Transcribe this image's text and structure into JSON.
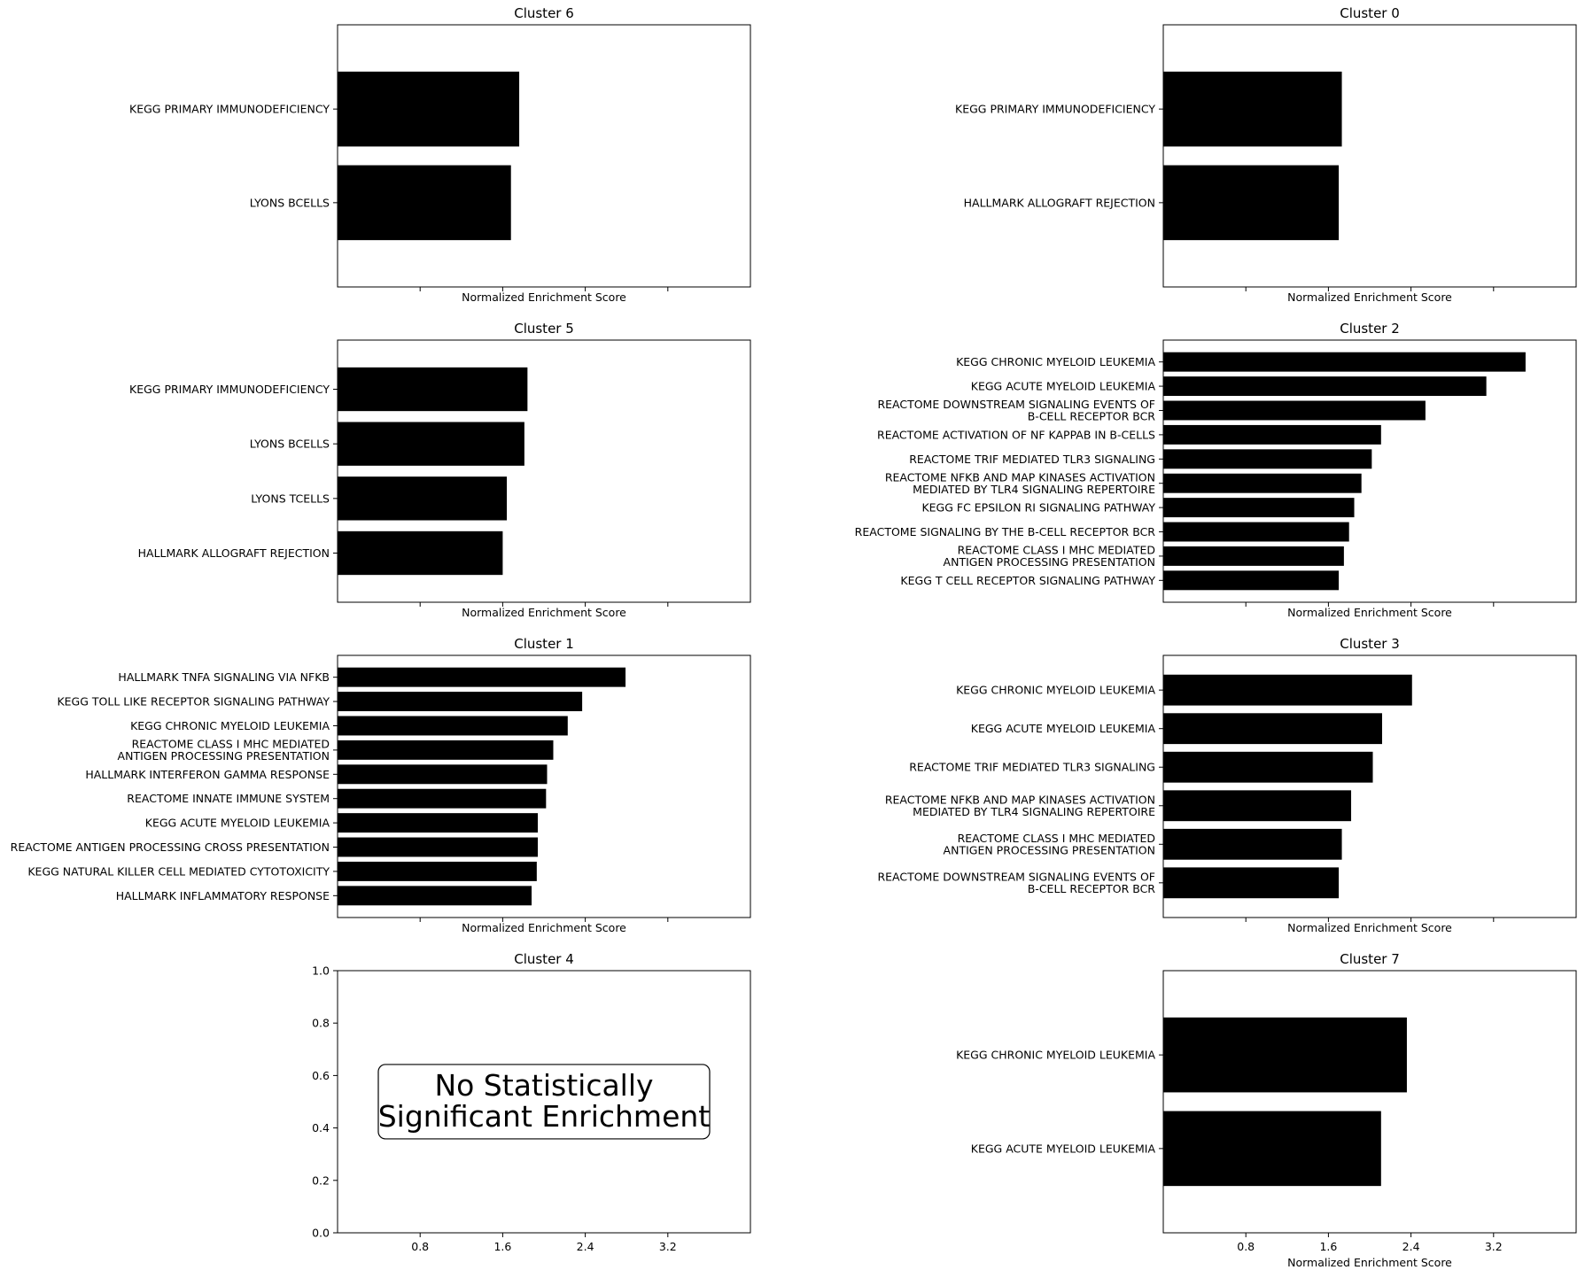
{
  "chart_data": [
    {
      "type": "bar",
      "orientation": "horizontal",
      "title": "Cluster 6",
      "xlabel": "Normalized Enrichment Score",
      "xlim": [
        0,
        4.0
      ],
      "categories": [
        "KEGG PRIMARY IMMUNODEFICIENCY",
        "LYONS BCELLS"
      ],
      "values": [
        1.76,
        1.68
      ],
      "color": "#000000"
    },
    {
      "type": "bar",
      "orientation": "horizontal",
      "title": "Cluster 0",
      "xlabel": "Normalized Enrichment Score",
      "xlim": [
        0,
        4.0
      ],
      "categories": [
        "KEGG PRIMARY IMMUNODEFICIENCY",
        "HALLMARK ALLOGRAFT REJECTION"
      ],
      "values": [
        1.73,
        1.7
      ],
      "color": "#000000"
    },
    {
      "type": "bar",
      "orientation": "horizontal",
      "title": "Cluster 5",
      "xlabel": "Normalized Enrichment Score",
      "xlim": [
        0,
        4.0
      ],
      "categories": [
        "KEGG PRIMARY IMMUNODEFICIENCY",
        "LYONS BCELLS",
        "LYONS TCELLS",
        "HALLMARK ALLOGRAFT REJECTION"
      ],
      "values": [
        1.84,
        1.81,
        1.64,
        1.6
      ],
      "color": "#000000"
    },
    {
      "type": "bar",
      "orientation": "horizontal",
      "title": "Cluster 2",
      "xlabel": "Normalized Enrichment Score",
      "xlim": [
        0,
        4.0
      ],
      "categories": [
        "KEGG CHRONIC MYELOID LEUKEMIA",
        "KEGG ACUTE MYELOID LEUKEMIA",
        "REACTOME DOWNSTREAM SIGNALING EVENTS OF\nB-CELL RECEPTOR BCR",
        "REACTOME ACTIVATION OF NF KAPPAB IN B-CELLS",
        "REACTOME TRIF MEDIATED TLR3 SIGNALING",
        "REACTOME NFKB AND MAP KINASES ACTIVATION\nMEDIATED BY TLR4 SIGNALING REPERTOIRE",
        "KEGG FC EPSILON RI SIGNALING PATHWAY",
        "REACTOME SIGNALING BY THE B-CELL RECEPTOR BCR",
        "REACTOME CLASS I MHC MEDIATED\nANTIGEN PROCESSING PRESENTATION",
        "KEGG T CELL RECEPTOR SIGNALING PATHWAY"
      ],
      "values": [
        3.51,
        3.13,
        2.54,
        2.11,
        2.02,
        1.92,
        1.85,
        1.8,
        1.75,
        1.7
      ],
      "color": "#000000"
    },
    {
      "type": "bar",
      "orientation": "horizontal",
      "title": "Cluster 1",
      "xlabel": "Normalized Enrichment Score",
      "xlim": [
        0,
        4.0
      ],
      "categories": [
        "HALLMARK TNFA SIGNALING VIA NFKB",
        "KEGG TOLL LIKE RECEPTOR SIGNALING PATHWAY",
        "KEGG CHRONIC MYELOID LEUKEMIA",
        "REACTOME CLASS I MHC MEDIATED\nANTIGEN PROCESSING PRESENTATION",
        "HALLMARK INTERFERON GAMMA RESPONSE",
        "REACTOME INNATE IMMUNE SYSTEM",
        "KEGG ACUTE MYELOID LEUKEMIA",
        "REACTOME ANTIGEN PROCESSING CROSS PRESENTATION",
        "KEGG NATURAL KILLER CELL MEDIATED CYTOTOXICITY",
        "HALLMARK INFLAMMATORY RESPONSE"
      ],
      "values": [
        2.79,
        2.37,
        2.23,
        2.09,
        2.03,
        2.02,
        1.94,
        1.94,
        1.93,
        1.88
      ],
      "color": "#000000"
    },
    {
      "type": "bar",
      "orientation": "horizontal",
      "title": "Cluster 3",
      "xlabel": "Normalized Enrichment Score",
      "xlim": [
        0,
        4.0
      ],
      "categories": [
        "KEGG CHRONIC MYELOID LEUKEMIA",
        "KEGG ACUTE MYELOID LEUKEMIA",
        "REACTOME TRIF MEDIATED TLR3 SIGNALING",
        "REACTOME NFKB AND MAP KINASES ACTIVATION\nMEDIATED BY TLR4 SIGNALING REPERTOIRE",
        "REACTOME CLASS I MHC MEDIATED\nANTIGEN PROCESSING PRESENTATION",
        "REACTOME DOWNSTREAM SIGNALING EVENTS OF\nB-CELL RECEPTOR BCR"
      ],
      "values": [
        2.41,
        2.12,
        2.03,
        1.82,
        1.73,
        1.7
      ],
      "color": "#000000"
    },
    {
      "type": "bar",
      "orientation": "horizontal",
      "title": "Cluster 4",
      "xlabel": "",
      "xlim": [
        0,
        4.0
      ],
      "ylim": [
        0,
        1.0
      ],
      "xticks": [
        "0.8",
        "1.6",
        "2.4",
        "3.2"
      ],
      "yticks": [
        "0.0",
        "0.2",
        "0.4",
        "0.6",
        "0.8",
        "1.0"
      ],
      "categories": [],
      "values": [],
      "annotation": "No Statistically\nSignificant Enrichment"
    },
    {
      "type": "bar",
      "orientation": "horizontal",
      "title": "Cluster 7",
      "xlabel": "Normalized Enrichment Score",
      "xlim": [
        0,
        4.0
      ],
      "xticks": [
        "0.8",
        "1.6",
        "2.4",
        "3.2"
      ],
      "categories": [
        "KEGG CHRONIC MYELOID LEUKEMIA",
        "KEGG ACUTE MYELOID LEUKEMIA"
      ],
      "values": [
        2.36,
        2.11
      ],
      "color": "#000000"
    }
  ]
}
